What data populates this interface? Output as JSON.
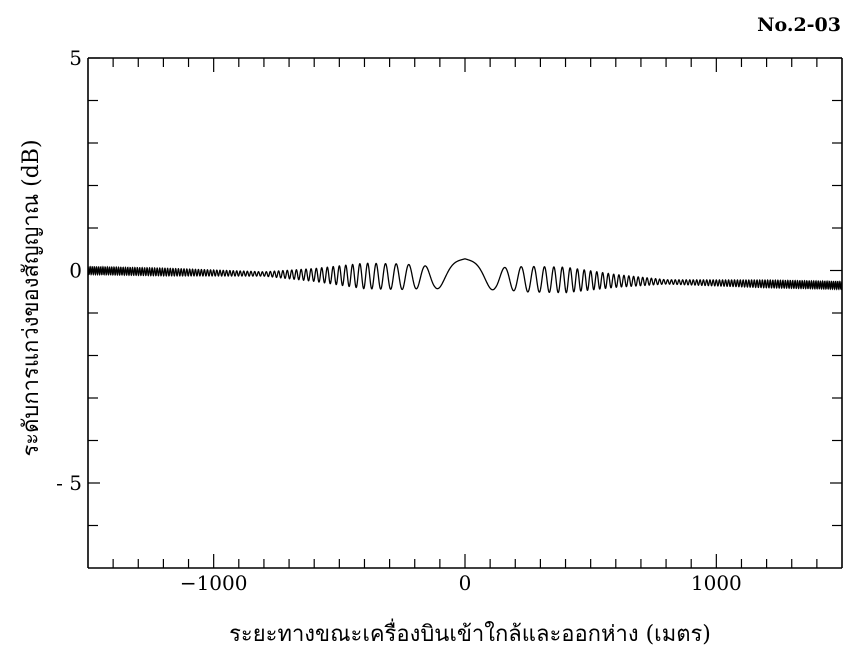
{
  "page_id": "No.2-03",
  "chart_data": {
    "type": "line",
    "title": "",
    "xlabel": "ระยะทางขณะเครื่องบินเข้าใกล้และออกห่าง (เมตร)",
    "ylabel": "ระดับการแกว่งของสัญญาณ (dB)",
    "xlim": [
      -1500,
      1500
    ],
    "ylim": [
      -7,
      5
    ],
    "x_ticks": [
      -1000,
      0,
      1000
    ],
    "x_tick_labels": [
      "−1000",
      "0",
      "1000"
    ],
    "y_ticks": [
      5,
      0,
      -5
    ],
    "y_tick_labels": [
      "5",
      "0",
      "- 5"
    ],
    "grid": false,
    "series": [
      {
        "envelope": {
          "x": [
            -1500,
            -1200,
            -800,
            -600,
            -400,
            -250,
            -120,
            0,
            120,
            250,
            400,
            600,
            800,
            1200,
            1500
          ],
          "y": [
            0.09,
            0.09,
            0.05,
            0.15,
            0.3,
            0.3,
            0.25,
            0.45,
            0.25,
            0.3,
            0.3,
            0.15,
            0.05,
            0.09,
            0.09
          ]
        },
        "baseline": {
          "x": [
            -1500,
            1500
          ],
          "y": [
            0.0,
            -0.35
          ]
        }
      }
    ]
  }
}
